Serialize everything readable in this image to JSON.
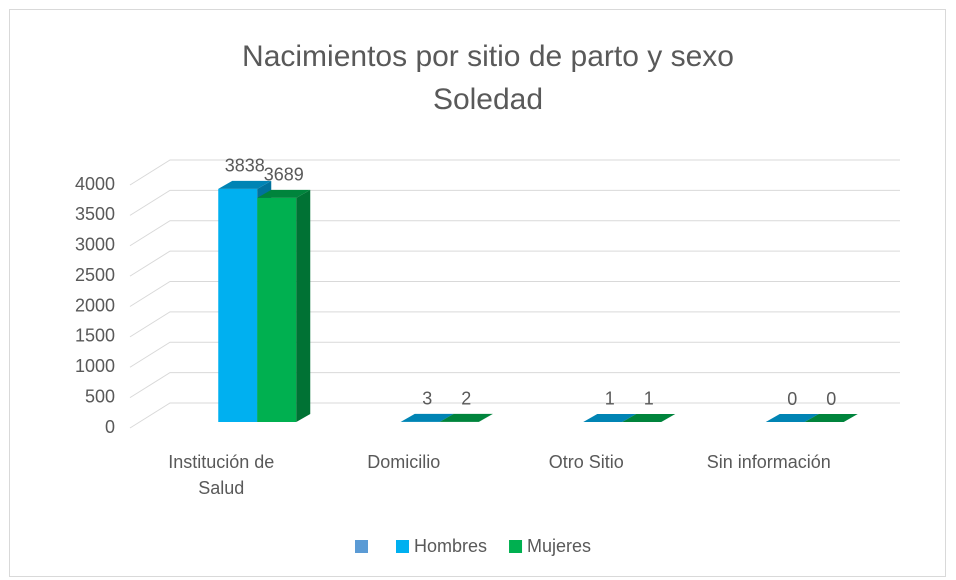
{
  "chart_data": {
    "type": "bar3d",
    "title": "Nacimientos por sitio de parto y sexo",
    "subtitle": "Soledad",
    "categories": [
      "Institución de Salud",
      "Domicilio",
      "Otro Sitio",
      "Sin información"
    ],
    "series": [
      {
        "name": "Hombres",
        "color": "#00b0f0",
        "values": [
          3838,
          3,
          1,
          0
        ]
      },
      {
        "name": "Mujeres",
        "color": "#00b050",
        "values": [
          3689,
          2,
          1,
          0
        ]
      }
    ],
    "ylim": [
      0,
      4000
    ],
    "yticks": [
      0,
      500,
      1000,
      1500,
      2000,
      2500,
      3000,
      3500,
      4000
    ],
    "grid": true,
    "legend": "bottom"
  }
}
